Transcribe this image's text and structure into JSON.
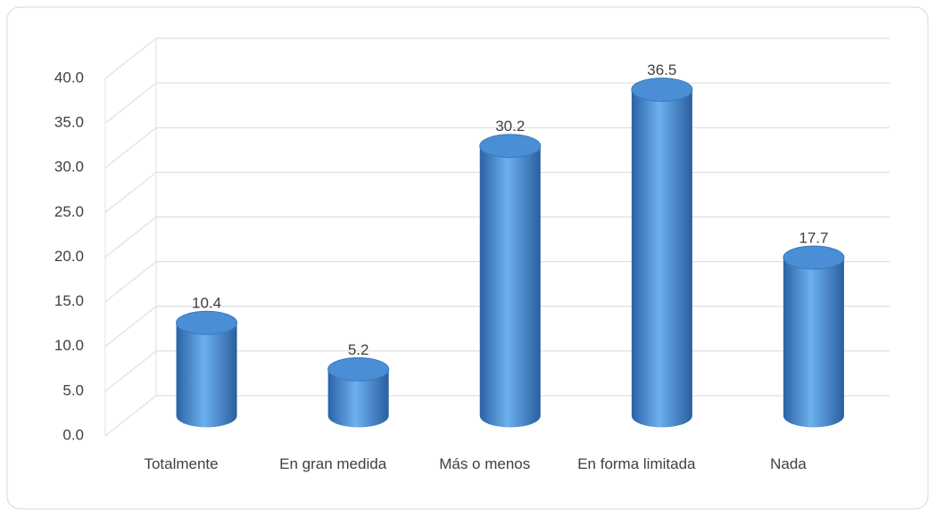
{
  "chart_data": {
    "type": "bar3d",
    "categories": [
      "Totalmente",
      "En gran medida",
      "Más o menos",
      "En forma limitada",
      "Nada"
    ],
    "values": [
      10.4,
      5.2,
      30.2,
      36.5,
      17.7
    ],
    "color": "#4a8fd6",
    "ylim": [
      0,
      40
    ],
    "yticks": [
      {
        "value": 0,
        "label": "0.0"
      },
      {
        "value": 5,
        "label": "5.0"
      },
      {
        "value": 10,
        "label": "10.0"
      },
      {
        "value": 15,
        "label": "15.0"
      },
      {
        "value": 20,
        "label": "20.0"
      },
      {
        "value": 25,
        "label": "25.0"
      },
      {
        "value": 30,
        "label": "30.0"
      },
      {
        "value": 35,
        "label": "35.0"
      },
      {
        "value": 40,
        "label": "40.0"
      }
    ],
    "grid": true
  }
}
